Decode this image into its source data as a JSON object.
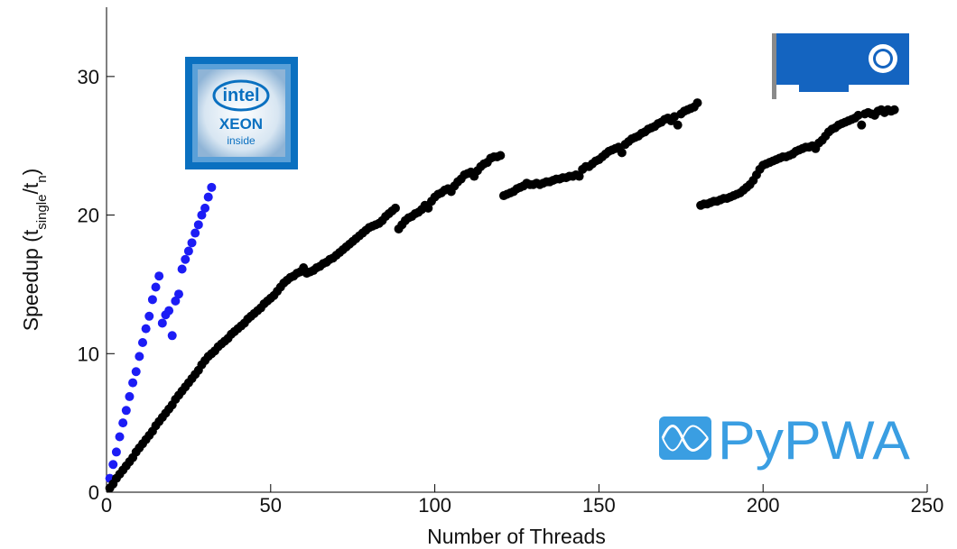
{
  "chart_data": {
    "type": "scatter",
    "xlabel": "Number of Threads",
    "ylabel": [
      "Speedup (t",
      "single",
      "/t",
      "n",
      ")"
    ],
    "xlim": [
      0,
      250
    ],
    "ylim": [
      0,
      35
    ],
    "xticks": [
      0,
      50,
      100,
      150,
      200,
      250
    ],
    "yticks": [
      0,
      10,
      20,
      30
    ],
    "logos": {
      "cpu": [
        "intel",
        "XEON",
        "inside"
      ],
      "software": "PyPWA"
    },
    "series": [
      {
        "color": "#1c1cf5",
        "x": [
          1,
          2,
          3,
          4,
          5,
          6,
          7,
          8,
          9,
          10,
          11,
          12,
          13,
          14,
          15,
          16,
          17,
          18,
          19,
          20,
          21,
          22,
          23,
          24,
          25,
          26,
          27,
          28,
          29,
          30,
          31,
          32
        ],
        "values": [
          1.0,
          2.0,
          2.9,
          4.0,
          5.0,
          5.9,
          6.9,
          7.9,
          8.7,
          9.8,
          10.8,
          11.8,
          12.7,
          13.9,
          14.8,
          15.6,
          12.2,
          12.8,
          13.1,
          11.3,
          13.8,
          14.3,
          16.1,
          16.8,
          17.4,
          18.0,
          18.7,
          19.3,
          20.0,
          20.5,
          21.3,
          22.0
        ]
      },
      {
        "color": "#000000",
        "x": [
          1,
          2,
          3,
          4,
          5,
          6,
          7,
          8,
          9,
          10,
          11,
          12,
          13,
          14,
          15,
          16,
          17,
          18,
          19,
          20,
          21,
          22,
          23,
          24,
          25,
          26,
          27,
          28,
          29,
          30,
          31,
          32,
          33,
          34,
          35,
          36,
          37,
          38,
          39,
          40,
          41,
          42,
          43,
          44,
          45,
          46,
          47,
          48,
          49,
          50,
          51,
          52,
          53,
          54,
          55,
          56,
          57,
          58,
          59,
          60,
          61,
          62,
          63,
          64,
          65,
          66,
          67,
          68,
          69,
          70,
          71,
          72,
          73,
          74,
          75,
          76,
          77,
          78,
          79,
          80,
          81,
          82,
          83,
          84,
          85,
          86,
          87,
          88,
          89,
          90,
          91,
          92,
          93,
          94,
          95,
          96,
          97,
          98,
          99,
          100,
          101,
          102,
          103,
          104,
          105,
          106,
          107,
          108,
          109,
          110,
          111,
          112,
          113,
          114,
          115,
          116,
          117,
          118,
          119,
          120,
          121,
          122,
          123,
          124,
          125,
          126,
          127,
          128,
          129,
          130,
          131,
          132,
          133,
          134,
          135,
          136,
          137,
          138,
          139,
          140,
          141,
          142,
          143,
          144,
          145,
          146,
          147,
          148,
          149,
          150,
          151,
          152,
          153,
          154,
          155,
          156,
          157,
          158,
          159,
          160,
          161,
          162,
          163,
          164,
          165,
          166,
          167,
          168,
          169,
          170,
          171,
          172,
          173,
          174,
          175,
          176,
          177,
          178,
          179,
          180,
          181,
          182,
          183,
          184,
          185,
          186,
          187,
          188,
          189,
          190,
          191,
          192,
          193,
          194,
          195,
          196,
          197,
          198,
          199,
          200,
          201,
          202,
          203,
          204,
          205,
          206,
          207,
          208,
          209,
          210,
          211,
          212,
          213,
          214,
          215,
          216,
          217,
          218,
          219,
          220,
          221,
          222,
          223,
          224,
          225,
          226,
          227,
          228,
          229,
          230,
          231,
          232,
          233,
          234,
          235,
          236,
          237,
          238,
          239,
          240
        ],
        "values": [
          0.3,
          0.6,
          1.0,
          1.3,
          1.6,
          1.9,
          2.2,
          2.5,
          2.9,
          3.2,
          3.5,
          3.8,
          4.1,
          4.4,
          4.8,
          5.1,
          5.4,
          5.7,
          6.0,
          6.3,
          6.7,
          7.0,
          7.3,
          7.6,
          7.9,
          8.2,
          8.5,
          8.8,
          9.2,
          9.5,
          9.8,
          10.0,
          10.2,
          10.5,
          10.7,
          10.9,
          11.1,
          11.4,
          11.6,
          11.8,
          12.0,
          12.2,
          12.5,
          12.7,
          12.9,
          13.1,
          13.3,
          13.6,
          13.8,
          14.0,
          14.2,
          14.5,
          14.8,
          15.1,
          15.3,
          15.5,
          15.6,
          15.8,
          15.9,
          16.2,
          15.8,
          15.9,
          16.0,
          16.2,
          16.3,
          16.5,
          16.6,
          16.8,
          16.9,
          17.1,
          17.3,
          17.5,
          17.7,
          17.9,
          18.1,
          18.3,
          18.5,
          18.7,
          18.9,
          19.1,
          19.2,
          19.3,
          19.4,
          19.6,
          19.9,
          20.1,
          20.3,
          20.5,
          19.0,
          19.3,
          19.6,
          19.8,
          19.9,
          20.1,
          20.2,
          20.4,
          20.7,
          20.5,
          21.0,
          21.3,
          21.5,
          21.6,
          21.8,
          21.9,
          21.7,
          22.1,
          22.4,
          22.6,
          22.9,
          23.0,
          23.1,
          22.8,
          23.2,
          23.5,
          23.7,
          23.8,
          24.1,
          24.2,
          24.2,
          24.3,
          21.4,
          21.5,
          21.6,
          21.7,
          21.9,
          22.0,
          22.1,
          22.3,
          22.2,
          22.2,
          22.3,
          22.2,
          22.3,
          22.4,
          22.4,
          22.5,
          22.6,
          22.6,
          22.7,
          22.7,
          22.8,
          22.8,
          22.9,
          22.8,
          23.3,
          23.5,
          23.5,
          23.7,
          23.9,
          24.0,
          24.2,
          24.4,
          24.6,
          24.7,
          24.8,
          24.9,
          24.5,
          25.1,
          25.3,
          25.5,
          25.6,
          25.7,
          25.9,
          26.0,
          26.2,
          26.3,
          26.4,
          26.6,
          26.7,
          26.9,
          27.0,
          26.8,
          27.1,
          26.5,
          27.3,
          27.5,
          27.6,
          27.7,
          27.8,
          28.1,
          20.7,
          20.8,
          20.8,
          20.9,
          21.0,
          21.0,
          21.1,
          21.2,
          21.2,
          21.3,
          21.4,
          21.5,
          21.6,
          21.8,
          22.0,
          22.2,
          22.5,
          22.9,
          23.3,
          23.6,
          23.7,
          23.8,
          23.9,
          24.0,
          24.1,
          24.2,
          24.2,
          24.3,
          24.4,
          24.6,
          24.7,
          24.8,
          24.9,
          24.9,
          25.0,
          24.8,
          25.2,
          25.4,
          25.7,
          26.0,
          26.2,
          26.3,
          26.5,
          26.6,
          26.7,
          26.8,
          26.9,
          27.0,
          27.2,
          26.5,
          27.3,
          27.4,
          27.3,
          27.2,
          27.5,
          27.6,
          27.4,
          27.6,
          27.5,
          27.6
        ]
      }
    ]
  }
}
